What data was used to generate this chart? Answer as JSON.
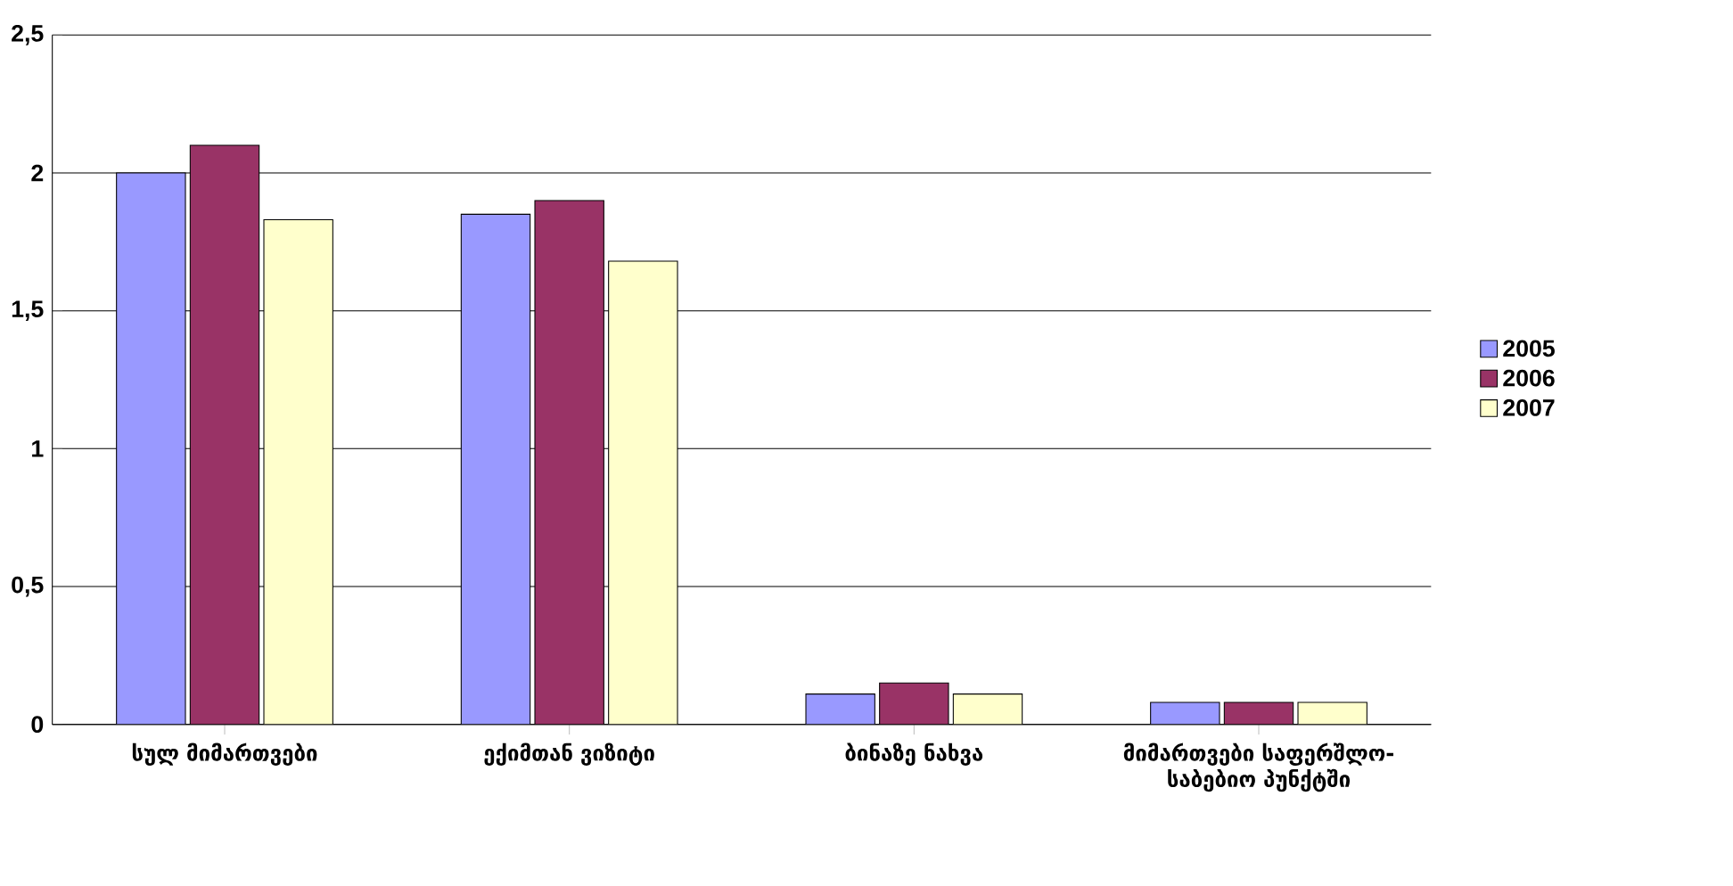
{
  "chart_data": {
    "type": "bar",
    "categories": [
      "სულ მიმართვები",
      "ექიმთან ვიზიტი",
      "ბინაზე ნახვა",
      "მიმართვები საფერშლო-საბებიო პუნქტში"
    ],
    "series": [
      {
        "name": "2005",
        "color": "#9999ff",
        "values": [
          2.0,
          1.85,
          0.11,
          0.08
        ]
      },
      {
        "name": "2006",
        "color": "#993366",
        "values": [
          2.1,
          1.9,
          0.15,
          0.08
        ]
      },
      {
        "name": "2007",
        "color": "#ffffcc",
        "values": [
          1.83,
          1.68,
          0.11,
          0.08
        ]
      }
    ],
    "ylim": [
      0,
      2.5
    ],
    "yticks": [
      0,
      {
        "value": 0.5,
        "label": "0,5"
      },
      1,
      {
        "value": 1.5,
        "label": "1,5"
      },
      2,
      {
        "value": 2.5,
        "label": "2,5"
      }
    ],
    "grid": "y",
    "legend": "right"
  }
}
